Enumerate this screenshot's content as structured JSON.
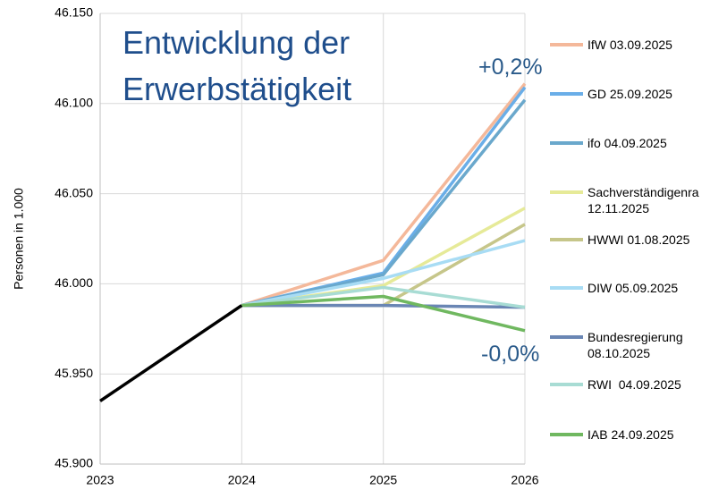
{
  "chart_data": {
    "type": "line",
    "title": "Entwicklung der Erwerbstätigkeit",
    "ylabel": "Personen in 1.000",
    "annotations": [
      "+0,2%",
      "-0,0%"
    ],
    "x": [
      2023,
      2024,
      2025,
      2026
    ],
    "xlim": [
      2023,
      2026
    ],
    "xticks": [
      2023,
      2024,
      2025,
      2026
    ],
    "ylim": [
      45900,
      46150
    ],
    "yticks": [
      {
        "value": 45900,
        "label": "45.900"
      },
      {
        "value": 45950,
        "label": "45.950"
      },
      {
        "value": 46000,
        "label": "46.000"
      },
      {
        "value": 46050,
        "label": "46.050"
      },
      {
        "value": 46100,
        "label": "46.100"
      },
      {
        "value": 46150,
        "label": "46.150"
      }
    ],
    "grid": true,
    "legend": "right",
    "series": [
      {
        "name": "IfW 03.09.2025",
        "color": "#f4b89a",
        "values": [
          null,
          45988,
          46013,
          46111
        ]
      },
      {
        "name": "GD 25.09.2025",
        "color": "#6aaee8",
        "values": [
          null,
          45988,
          46006,
          46109
        ]
      },
      {
        "name": "ifo 04.09.2025",
        "color": "#6aa8cc",
        "values": [
          null,
          45988,
          46005,
          46102
        ]
      },
      {
        "name": "Sachverständigenra 12.11.2025",
        "color": "#e6ea98",
        "values": [
          null,
          45988,
          45999,
          46042
        ]
      },
      {
        "name": "HWWI 01.08.2025",
        "color": "#c6c68a",
        "values": [
          null,
          45988,
          45988,
          46033
        ]
      },
      {
        "name": "DIW 05.09.2025",
        "color": "#a8dcf4",
        "values": [
          null,
          45988,
          46003,
          46024
        ]
      },
      {
        "name": "Bundesregierung 08.10.2025",
        "color": "#6a86b4",
        "values": [
          null,
          45988,
          45988,
          45987
        ]
      },
      {
        "name": "RWI  04.09.2025",
        "color": "#a8dcd4",
        "values": [
          null,
          45988,
          45998,
          45987
        ]
      },
      {
        "name": "IAB 24.09.2025",
        "color": "#70b860",
        "values": [
          null,
          45988,
          45993,
          45974
        ]
      },
      {
        "color": "#000000",
        "values": [
          45935,
          45988,
          null,
          null
        ]
      }
    ]
  }
}
